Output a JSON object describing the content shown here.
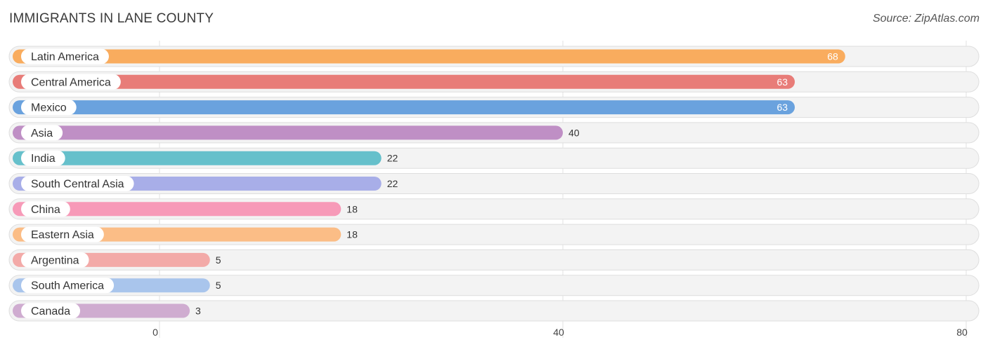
{
  "header": {
    "title": "IMMIGRANTS IN LANE COUNTY",
    "source": "Source: ZipAtlas.com"
  },
  "chart_data": {
    "type": "bar",
    "orientation": "horizontal",
    "categories": [
      "Latin America",
      "Central America",
      "Mexico",
      "Asia",
      "India",
      "South Central Asia",
      "China",
      "Eastern Asia",
      "Argentina",
      "South America",
      "Canada"
    ],
    "values": [
      68,
      63,
      63,
      40,
      22,
      22,
      18,
      18,
      5,
      5,
      3
    ],
    "colors": [
      "#f9ac5e",
      "#e87c78",
      "#6aa2de",
      "#bf8fc5",
      "#66c0cb",
      "#a8aee8",
      "#f79ab8",
      "#fbbd86",
      "#f3aaa8",
      "#a9c5ec",
      "#cfacd0"
    ],
    "xlim": [
      0,
      80
    ],
    "ticks": [
      0,
      40,
      80
    ],
    "grid": true,
    "legend": "none"
  }
}
